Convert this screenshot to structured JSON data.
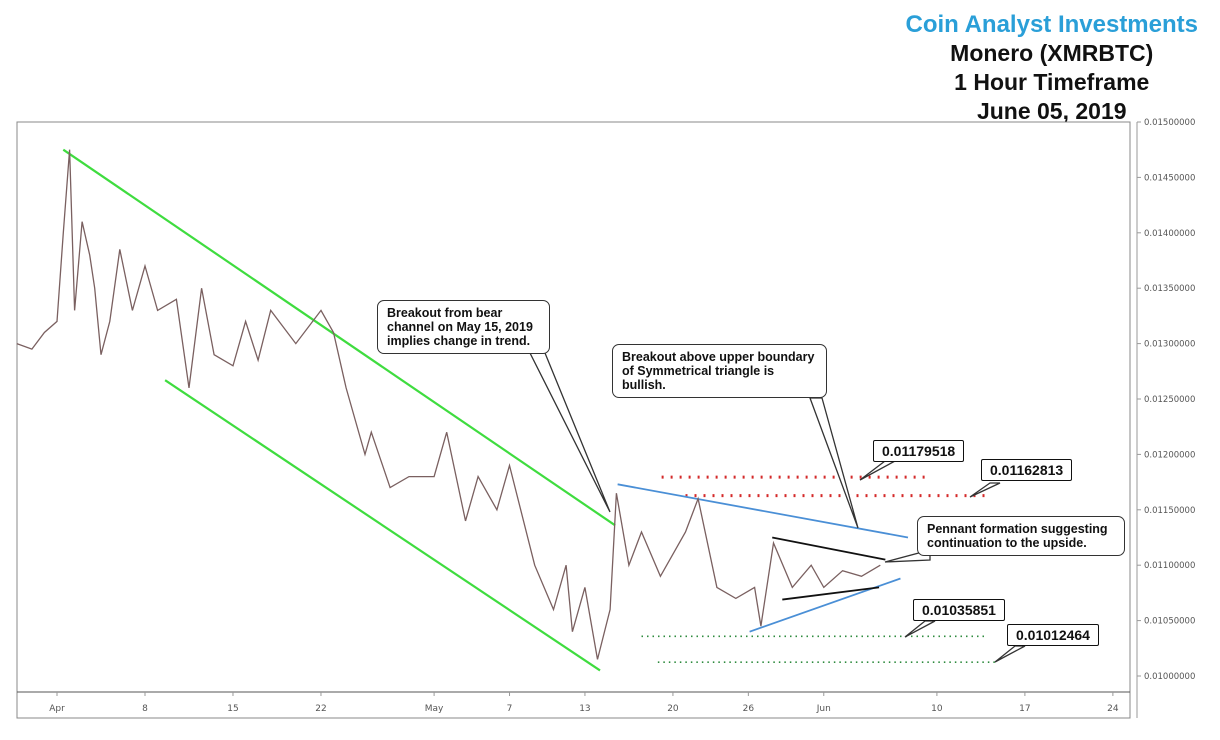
{
  "header": {
    "brand": "Coin Analyst Investments",
    "pair": "Monero (XMRBTC)",
    "timeframe": "1 Hour Timeframe",
    "date": "June 05, 2019"
  },
  "chart_data": {
    "type": "line",
    "x_unit": "days since Apr 1, 2019",
    "ylim": [
      0.0099,
      0.015
    ],
    "xlim": [
      -3.2,
      85.5
    ],
    "grid": false,
    "y_ticks": [
      "0.01500000",
      "0.01450000",
      "0.01400000",
      "0.01350000",
      "0.01300000",
      "0.01250000",
      "0.01200000",
      "0.01150000",
      "0.01100000",
      "0.01050000",
      "0.01000000"
    ],
    "y_tick_values": [
      0.015,
      0.0145,
      0.014,
      0.0135,
      0.013,
      0.0125,
      0.012,
      0.0115,
      0.011,
      0.0105,
      0.01
    ],
    "x_ticks": [
      {
        "label": "Apr",
        "day": 0
      },
      {
        "label": "8",
        "day": 7
      },
      {
        "label": "15",
        "day": 14
      },
      {
        "label": "22",
        "day": 21
      },
      {
        "label": "May",
        "day": 30
      },
      {
        "label": "7",
        "day": 36
      },
      {
        "label": "13",
        "day": 42
      },
      {
        "label": "20",
        "day": 49
      },
      {
        "label": "26",
        "day": 55
      },
      {
        "label": "Jun",
        "day": 61
      },
      {
        "label": "10",
        "day": 70
      },
      {
        "label": "17",
        "day": 77
      },
      {
        "label": "24",
        "day": 84
      }
    ],
    "price": [
      [
        -3.2,
        0.013
      ],
      [
        -2,
        0.01295
      ],
      [
        -1,
        0.0131
      ],
      [
        0,
        0.0132
      ],
      [
        0.5,
        0.014
      ],
      [
        1,
        0.01475
      ],
      [
        1.4,
        0.0133
      ],
      [
        2,
        0.0141
      ],
      [
        2.6,
        0.0138
      ],
      [
        3,
        0.0135
      ],
      [
        3.5,
        0.0129
      ],
      [
        4.2,
        0.0132
      ],
      [
        5,
        0.01385
      ],
      [
        6,
        0.0133
      ],
      [
        7,
        0.0137
      ],
      [
        8,
        0.0133
      ],
      [
        9.5,
        0.0134
      ],
      [
        10.5,
        0.0126
      ],
      [
        11.5,
        0.0135
      ],
      [
        12.5,
        0.0129
      ],
      [
        14,
        0.0128
      ],
      [
        15,
        0.0132
      ],
      [
        16,
        0.01285
      ],
      [
        17,
        0.0133
      ],
      [
        19,
        0.013
      ],
      [
        21,
        0.0133
      ],
      [
        22,
        0.0131
      ],
      [
        23,
        0.0126
      ],
      [
        24.5,
        0.012
      ],
      [
        25,
        0.0122
      ],
      [
        26.5,
        0.0117
      ],
      [
        28,
        0.0118
      ],
      [
        30,
        0.0118
      ],
      [
        31,
        0.0122
      ],
      [
        32.5,
        0.0114
      ],
      [
        33.5,
        0.0118
      ],
      [
        35,
        0.0115
      ],
      [
        36,
        0.0119
      ],
      [
        38,
        0.011
      ],
      [
        39.5,
        0.0106
      ],
      [
        40.5,
        0.011
      ],
      [
        41,
        0.0104
      ],
      [
        42,
        0.0108
      ],
      [
        43,
        0.01015
      ],
      [
        44,
        0.0106
      ],
      [
        44.5,
        0.01165
      ],
      [
        45.5,
        0.011
      ],
      [
        46.5,
        0.0113
      ],
      [
        48,
        0.0109
      ],
      [
        50,
        0.0113
      ],
      [
        51,
        0.0116
      ],
      [
        52.5,
        0.0108
      ],
      [
        54,
        0.0107
      ],
      [
        55.5,
        0.0108
      ],
      [
        56,
        0.01045
      ],
      [
        57,
        0.0112
      ],
      [
        58.5,
        0.0108
      ],
      [
        60,
        0.011
      ],
      [
        61,
        0.0108
      ],
      [
        62.5,
        0.01095
      ],
      [
        64,
        0.0109
      ],
      [
        65.5,
        0.011
      ]
    ],
    "trendlines": [
      {
        "name": "bear-channel-upper",
        "color": "#3fdc3f",
        "from": [
          0.5,
          0.01475
        ],
        "to": [
          44.4,
          0.01136
        ]
      },
      {
        "name": "bear-channel-lower",
        "color": "#3fdc3f",
        "from": [
          8.6,
          0.01267
        ],
        "to": [
          43.2,
          0.01005
        ]
      },
      {
        "name": "triangle-upper",
        "color": "#4a8fd6",
        "from": [
          44.6,
          0.01173
        ],
        "to": [
          67.7,
          0.01125
        ]
      },
      {
        "name": "triangle-lower",
        "color": "#4a8fd6",
        "from": [
          55.1,
          0.0104
        ],
        "to": [
          67.1,
          0.01088
        ]
      },
      {
        "name": "pennant-upper",
        "color": "#111111",
        "from": [
          56.9,
          0.01125
        ],
        "to": [
          65.9,
          0.01105
        ]
      },
      {
        "name": "pennant-lower",
        "color": "#111111",
        "from": [
          57.7,
          0.01069
        ],
        "to": [
          65.4,
          0.0108
        ]
      }
    ],
    "levels": [
      {
        "label": "0.01179518",
        "value": 0.01179518,
        "color": "#d42a2a",
        "from": 48.1,
        "to": 69.1
      },
      {
        "label": "0.01162813",
        "value": 0.01162813,
        "color": "#d42a2a",
        "from": 50,
        "to": 73.8
      },
      {
        "label": "0.01035851",
        "value": 0.01035851,
        "color": "#2e8b3e",
        "from": 46.5,
        "to": 73.8
      },
      {
        "label": "0.01012464",
        "value": 0.01012464,
        "color": "#2e8b3e",
        "from": 47.8,
        "to": 74.8
      }
    ],
    "annotations": [
      "Breakout from bear channel on May 15, 2019 implies change in trend.",
      "Breakout above upper boundary of Symmetrical triangle is bullish.",
      "Pennant formation suggesting continuation to the upside."
    ]
  }
}
